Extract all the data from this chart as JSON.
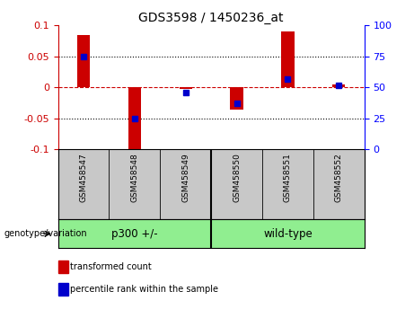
{
  "title": "GDS3598 / 1450236_at",
  "samples": [
    "GSM458547",
    "GSM458548",
    "GSM458549",
    "GSM458550",
    "GSM458551",
    "GSM458552"
  ],
  "transformed_count": [
    0.085,
    -0.105,
    -0.002,
    -0.035,
    0.09,
    0.005
  ],
  "percentile_rank": [
    75,
    25,
    46,
    37,
    57,
    52
  ],
  "groups": [
    {
      "label": "p300 +/-",
      "indices": [
        0,
        1,
        2
      ]
    },
    {
      "label": "wild-type",
      "indices": [
        3,
        4,
        5
      ]
    }
  ],
  "group_bg_color": "#90EE90",
  "sample_bg_color": "#C8C8C8",
  "bar_color": "#CC0000",
  "dot_color": "#0000CC",
  "left_ylim": [
    -0.1,
    0.1
  ],
  "right_ylim": [
    0,
    100
  ],
  "left_yticks": [
    -0.1,
    -0.05,
    0,
    0.05,
    0.1
  ],
  "right_yticks": [
    0,
    25,
    50,
    75,
    100
  ],
  "hline_color": "#CC0000",
  "grid_color": "#000000",
  "bar_width": 0.25
}
